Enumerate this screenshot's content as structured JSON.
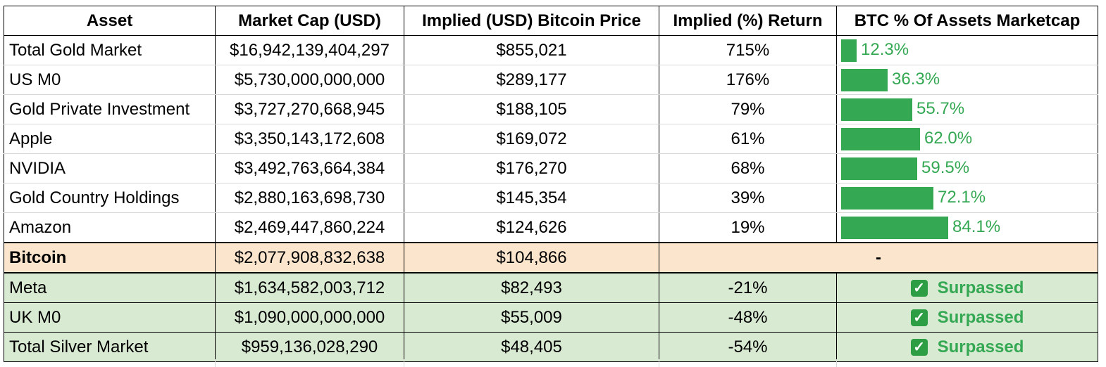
{
  "headers": {
    "asset": "Asset",
    "market_cap": "Market Cap (USD)",
    "implied_price": "Implied (USD) Bitcoin Price",
    "implied_return": "Implied (%) Return",
    "btc_pct": "BTC % Of Assets Marketcap"
  },
  "rows": [
    {
      "asset": "Total Gold Market",
      "market_cap": "$16,942,139,404,297",
      "implied_price": "$855,021",
      "implied_return": "715%",
      "btc_pct_label": "12.3%",
      "btc_pct_value": 12.3
    },
    {
      "asset": "US M0",
      "market_cap": "$5,730,000,000,000",
      "implied_price": "$289,177",
      "implied_return": "176%",
      "btc_pct_label": "36.3%",
      "btc_pct_value": 36.3
    },
    {
      "asset": "Gold Private Investment",
      "market_cap": "$3,727,270,668,945",
      "implied_price": "$188,105",
      "implied_return": "79%",
      "btc_pct_label": "55.7%",
      "btc_pct_value": 55.7
    },
    {
      "asset": "Apple",
      "market_cap": "$3,350,143,172,608",
      "implied_price": "$169,072",
      "implied_return": "61%",
      "btc_pct_label": "62.0%",
      "btc_pct_value": 62.0
    },
    {
      "asset": "NVIDIA",
      "market_cap": "$3,492,763,664,384",
      "implied_price": "$176,270",
      "implied_return": "68%",
      "btc_pct_label": "59.5%",
      "btc_pct_value": 59.5
    },
    {
      "asset": "Gold Country Holdings",
      "market_cap": "$2,880,163,698,730",
      "implied_price": "$145,354",
      "implied_return": "39%",
      "btc_pct_label": "72.1%",
      "btc_pct_value": 72.1
    },
    {
      "asset": "Amazon",
      "market_cap": "$2,469,447,860,224",
      "implied_price": "$124,626",
      "implied_return": "19%",
      "btc_pct_label": "84.1%",
      "btc_pct_value": 84.1
    }
  ],
  "bitcoin": {
    "asset": "Bitcoin",
    "market_cap": "$2,077,908,832,638",
    "implied_price": "$104,866",
    "placeholder": "-"
  },
  "surpassed_rows": [
    {
      "asset": "Meta",
      "market_cap": "$1,634,582,003,712",
      "implied_price": "$82,493",
      "implied_return": "-21%",
      "status": "Surpassed"
    },
    {
      "asset": "UK M0",
      "market_cap": "$1,090,000,000,000",
      "implied_price": "$55,009",
      "implied_return": "-48%",
      "status": "Surpassed"
    },
    {
      "asset": "Total Silver Market",
      "market_cap": "$959,136,028,290",
      "implied_price": "$48,405",
      "implied_return": "-54%",
      "status": "Surpassed"
    }
  ],
  "colors": {
    "bar": "#34a853",
    "bitcoin_row": "#fce5cd",
    "surpassed_row": "#d9ead3"
  },
  "icons": {
    "status": "check-mark-icon"
  }
}
